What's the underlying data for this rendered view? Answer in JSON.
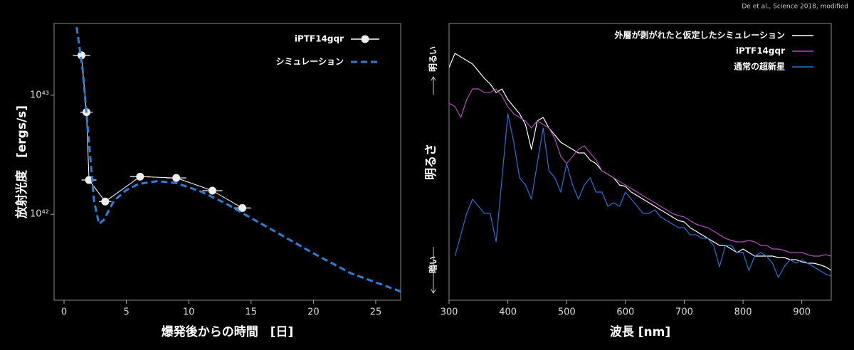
{
  "credit": "De et al., Science 2018, modified",
  "chart_data": [
    {
      "type": "line",
      "xlabel": "爆発後からの時間　[日]",
      "ylabel": "放射光度　[ergs/s]",
      "xlim": [
        -0.8,
        27
      ],
      "xticks": [
        0,
        5,
        10,
        15,
        20,
        25
      ],
      "ylim": [
        1.9e+41,
        4e+43
      ],
      "ylog": true,
      "yticks": [
        {
          "value": 1e+42,
          "label": "10⁴²"
        },
        {
          "value": 1e+43,
          "label": "10⁴³"
        }
      ],
      "legend": "upper right",
      "series": [
        {
          "name": "iPTF14gqr",
          "color": "#ffffff",
          "marker": true,
          "x": [
            1.4,
            1.8,
            2.0,
            3.3,
            6.1,
            9.0,
            11.9,
            14.3
          ],
          "values": [
            2.16e+43,
            7.2e+42,
            1.94e+42,
            1.28e+42,
            2.07e+42,
            2.02e+42,
            1.58e+42,
            1.13e+42
          ],
          "xerr": [
            0.7,
            0.5,
            0.6,
            0.5,
            0.8,
            0.8,
            0.8,
            0.7
          ]
        },
        {
          "name": "シミュレーション",
          "color": "#2a7fd8",
          "dash": true,
          "x": [
            0.9,
            1.5,
            2.0,
            2.4,
            2.8,
            3.2,
            4,
            5,
            6,
            7.5,
            9,
            11,
            13,
            15,
            17,
            20,
            23,
            27
          ],
          "values": [
            4.5e+43,
            1.6e+43,
            4e+42,
            1.3e+42,
            8.3e+41,
            9e+41,
            1.3e+42,
            1.6e+42,
            1.8e+42,
            1.9e+42,
            1.83e+42,
            1.55e+42,
            1.23e+42,
            9.3e+41,
            7.1e+41,
            4.7e+41,
            3.2e+41,
            2.25e+41
          ]
        }
      ]
    },
    {
      "type": "line",
      "xlabel": "波長 [nm]",
      "ylabel": "明るさ",
      "ytop": "明るい",
      "ybottom": "暗い",
      "xlim": [
        300,
        950
      ],
      "xticks": [
        300,
        400,
        500,
        600,
        700,
        800,
        900
      ],
      "ylim": [
        0,
        389
      ],
      "legend": "upper right",
      "x": [
        300,
        310,
        320,
        330,
        340,
        350,
        360,
        370,
        380,
        390,
        400,
        410,
        420,
        430,
        440,
        450,
        460,
        470,
        480,
        490,
        500,
        510,
        520,
        530,
        540,
        550,
        560,
        570,
        580,
        590,
        600,
        610,
        620,
        630,
        640,
        650,
        660,
        670,
        680,
        690,
        700,
        710,
        720,
        730,
        740,
        750,
        760,
        770,
        780,
        790,
        800,
        810,
        820,
        830,
        840,
        850,
        860,
        870,
        880,
        890,
        900,
        910,
        920,
        930,
        940,
        950
      ],
      "series": [
        {
          "name": "外層が剥がれたと仮定したシミュレーション",
          "color": "#ffffff",
          "values": [
            327,
            347,
            342,
            337,
            332,
            322,
            312,
            304,
            292,
            297,
            282,
            272,
            262,
            247,
            212,
            252,
            257,
            242,
            232,
            222,
            217,
            212,
            207,
            207,
            197,
            192,
            182,
            177,
            172,
            162,
            160,
            152,
            147,
            142,
            137,
            132,
            127,
            122,
            117,
            112,
            110,
            102,
            97,
            92,
            87,
            82,
            77,
            77,
            72,
            67,
            72,
            67,
            62,
            62,
            62,
            62,
            60,
            60,
            57,
            57,
            54,
            52,
            52,
            50,
            47,
            42
          ]
        },
        {
          "name": "iPTF14gqr",
          "color": "#b04cb4",
          "values": [
            277,
            272,
            257,
            282,
            297,
            297,
            292,
            292,
            297,
            287,
            272,
            262,
            257,
            252,
            242,
            252,
            247,
            242,
            227,
            202,
            192,
            202,
            212,
            217,
            207,
            197,
            182,
            177,
            172,
            167,
            162,
            157,
            152,
            147,
            142,
            137,
            132,
            127,
            122,
            119,
            117,
            112,
            107,
            104,
            102,
            97,
            92,
            87,
            84,
            82,
            82,
            84,
            82,
            77,
            77,
            72,
            72,
            70,
            67,
            67,
            67,
            64,
            62,
            62,
            64,
            62
          ]
        },
        {
          "name": "通常の超新星",
          "color": "#2f6fd4",
          "values": [
            null,
            62,
            92,
            122,
            142,
            132,
            122,
            122,
            82,
            172,
            262,
            222,
            172,
            162,
            142,
            192,
            242,
            182,
            172,
            152,
            192,
            162,
            142,
            162,
            172,
            152,
            152,
            132,
            137,
            132,
            152,
            142,
            132,
            122,
            122,
            127,
            117,
            112,
            107,
            102,
            102,
            92,
            92,
            87,
            87,
            77,
            47,
            77,
            77,
            67,
            67,
            42,
            62,
            67,
            62,
            52,
            32,
            47,
            57,
            52,
            57,
            52,
            47,
            42,
            37,
            34
          ]
        }
      ]
    }
  ]
}
